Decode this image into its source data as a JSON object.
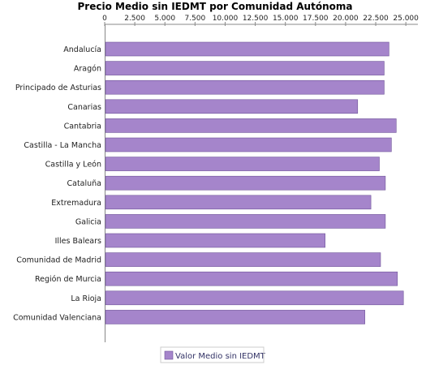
{
  "chart_data": {
    "type": "bar",
    "orientation": "horizontal",
    "title": "Precio Medio sin IEDMT por Comunidad Autónoma",
    "categories": [
      "Andalucía",
      "Aragón",
      "Principado de Asturias",
      "Canarias",
      "Cantabria",
      "Castilla - La Mancha",
      "Castilla y León",
      "Cataluña",
      "Extremadura",
      "Galicia",
      "Illes Balears",
      "Comunidad de Madrid",
      "Región de Murcia",
      "La Rioja",
      "Comunidad Valenciana"
    ],
    "series": [
      {
        "name": "Valor Medio sin IEDMT",
        "color": "#A585CB",
        "values": [
          23600,
          23200,
          23200,
          21000,
          24200,
          23800,
          22800,
          23300,
          22100,
          23300,
          18300,
          22900,
          24300,
          24800,
          21600
        ]
      }
    ],
    "xlim": [
      0,
      26000
    ],
    "ticks": [
      "0",
      "2.500",
      "5.000",
      "7.500",
      "10.000",
      "12.500",
      "15.000",
      "17.500",
      "20.000",
      "22.500",
      "25.000"
    ],
    "tick_values": [
      0,
      2500,
      5000,
      7500,
      10000,
      12500,
      15000,
      17500,
      20000,
      22500,
      25000
    ],
    "axis_position": "top",
    "grid": false,
    "legend_position": "bottom"
  }
}
